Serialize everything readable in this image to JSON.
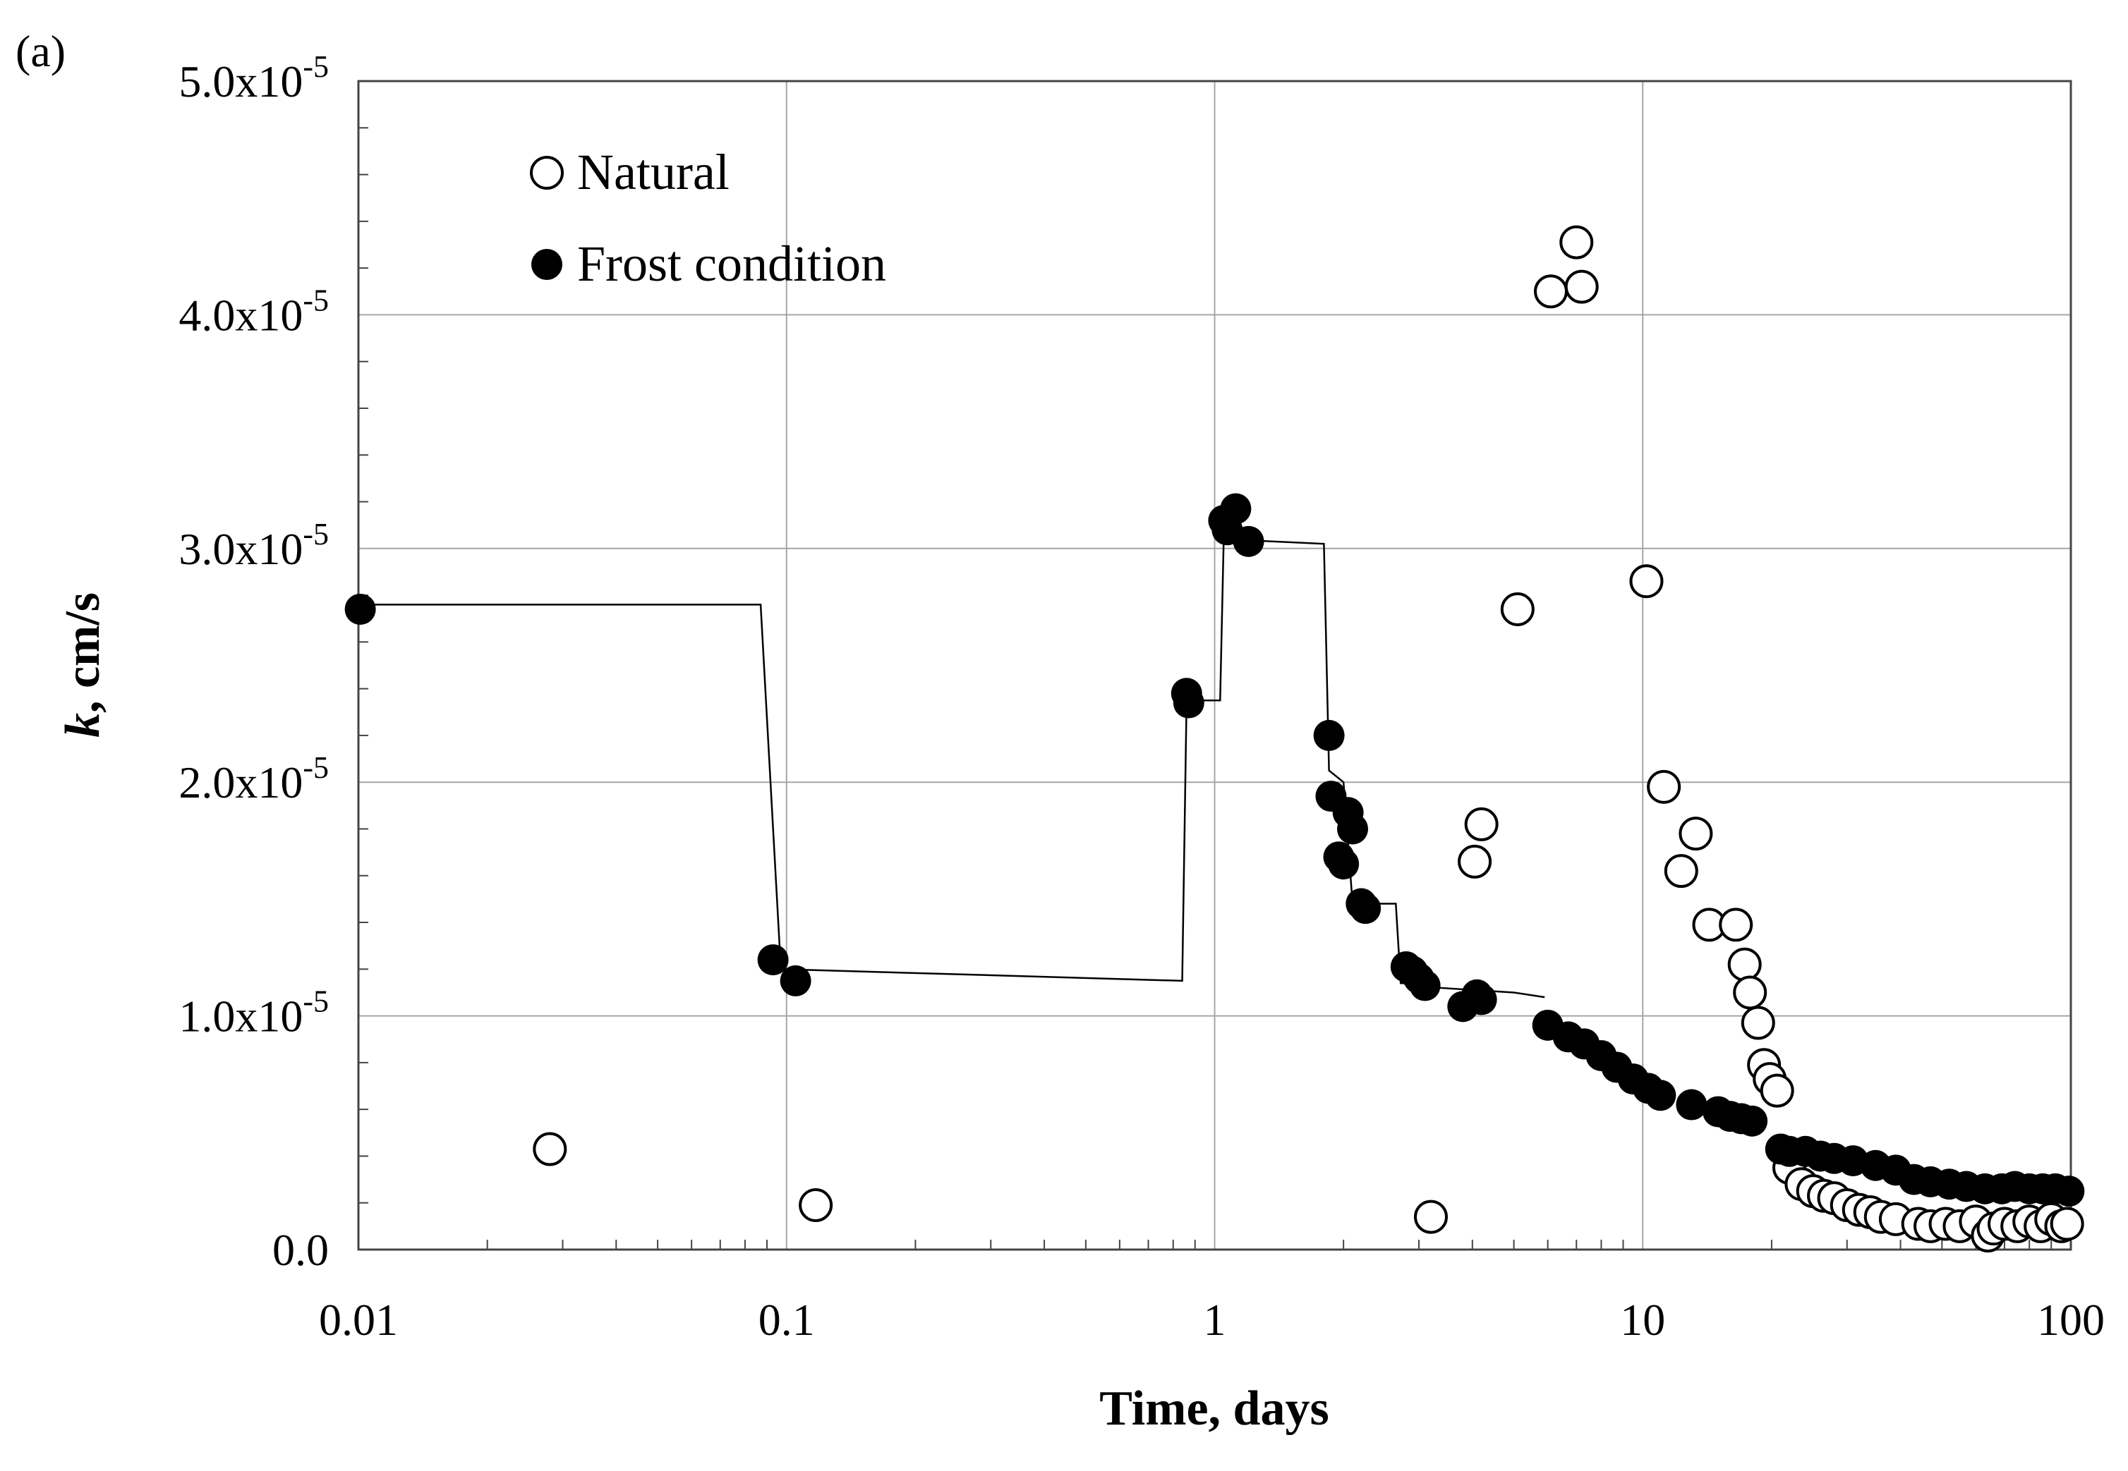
{
  "chart_data": {
    "type": "scatter",
    "panel_label": "(a)",
    "title": "",
    "xlabel": "Time, days",
    "ylabel_italic": "k",
    "ylabel_rest": ", cm/s",
    "xscale": "log",
    "xlim": [
      0.01,
      100
    ],
    "ylim": [
      0,
      5e-05
    ],
    "grid": true,
    "legend_position": "top-left",
    "x_ticks": [
      {
        "value": 0.01,
        "label": "0.01"
      },
      {
        "value": 0.1,
        "label": "0.1"
      },
      {
        "value": 1,
        "label": "1"
      },
      {
        "value": 10,
        "label": "10"
      },
      {
        "value": 100,
        "label": "100"
      }
    ],
    "y_ticks": [
      {
        "value": 0,
        "mant": "0.0",
        "exp": ""
      },
      {
        "value": 1e-05,
        "mant": "1.0x10",
        "exp": "-5"
      },
      {
        "value": 2e-05,
        "mant": "2.0x10",
        "exp": "-5"
      },
      {
        "value": 3e-05,
        "mant": "3.0x10",
        "exp": "-5"
      },
      {
        "value": 4e-05,
        "mant": "4.0x10",
        "exp": "-5"
      },
      {
        "value": 5e-05,
        "mant": "5.0x10",
        "exp": "-5"
      }
    ],
    "series": [
      {
        "name": "Natural",
        "marker": "open-circle",
        "color": "#000000",
        "points": [
          [
            0.028,
            4.3e-06
          ],
          [
            0.117,
            1.9e-06
          ],
          [
            3.2,
            1.4e-06
          ],
          [
            4.05,
            1.66e-05
          ],
          [
            4.2,
            1.82e-05
          ],
          [
            5.1,
            2.74e-05
          ],
          [
            6.1,
            4.1e-05
          ],
          [
            7.0,
            4.31e-05
          ],
          [
            7.2,
            4.12e-05
          ],
          [
            10.2,
            2.86e-05
          ],
          [
            11.2,
            1.98e-05
          ],
          [
            12.3,
            1.62e-05
          ],
          [
            13.3,
            1.78e-05
          ],
          [
            14.3,
            1.39e-05
          ],
          [
            16.5,
            1.39e-05
          ],
          [
            17.3,
            1.22e-05
          ],
          [
            17.8,
            1.1e-05
          ],
          [
            18.6,
            9.7e-06
          ],
          [
            19.2,
            7.9e-06
          ],
          [
            19.8,
            7.3e-06
          ],
          [
            20.6,
            6.8e-06
          ],
          [
            22.0,
            3.5e-06
          ],
          [
            23.5,
            2.8e-06
          ],
          [
            25.0,
            2.5e-06
          ],
          [
            26.5,
            2.3e-06
          ],
          [
            28.0,
            2.2e-06
          ],
          [
            30.0,
            1.9e-06
          ],
          [
            32.0,
            1.7e-06
          ],
          [
            34.0,
            1.6e-06
          ],
          [
            36.0,
            1.4e-06
          ],
          [
            39.0,
            1.3e-06
          ],
          [
            44.0,
            1.1e-06
          ],
          [
            47.0,
            1e-06
          ],
          [
            51.0,
            1.1e-06
          ],
          [
            55.0,
            1e-06
          ],
          [
            60.0,
            1.2e-06
          ],
          [
            64.0,
            6e-07
          ],
          [
            66.0,
            9e-07
          ],
          [
            70.0,
            1.1e-06
          ],
          [
            75.0,
            1e-06
          ],
          [
            80.0,
            1.2e-06
          ],
          [
            85.0,
            1e-06
          ],
          [
            90.0,
            1.3e-06
          ],
          [
            95.0,
            1e-06
          ],
          [
            98.0,
            1.1e-06
          ]
        ]
      },
      {
        "name": "Frost condition",
        "marker": "filled-circle",
        "color": "#000000",
        "points": [
          [
            0.0101,
            2.74e-05
          ],
          [
            0.093,
            1.24e-05
          ],
          [
            0.105,
            1.15e-05
          ],
          [
            0.86,
            2.38e-05
          ],
          [
            0.87,
            2.34e-05
          ],
          [
            1.05,
            3.12e-05
          ],
          [
            1.07,
            3.08e-05
          ],
          [
            1.12,
            3.17e-05
          ],
          [
            1.2,
            3.03e-05
          ],
          [
            1.85,
            2.2e-05
          ],
          [
            1.87,
            1.94e-05
          ],
          [
            1.95,
            1.68e-05
          ],
          [
            2.0,
            1.65e-05
          ],
          [
            2.05,
            1.87e-05
          ],
          [
            2.1,
            1.8e-05
          ],
          [
            2.2,
            1.48e-05
          ],
          [
            2.25,
            1.46e-05
          ],
          [
            2.8,
            1.21e-05
          ],
          [
            2.9,
            1.19e-05
          ],
          [
            3.0,
            1.16e-05
          ],
          [
            3.1,
            1.13e-05
          ],
          [
            3.8,
            1.04e-05
          ],
          [
            4.1,
            1.09e-05
          ],
          [
            4.2,
            1.07e-05
          ],
          [
            6.0,
            9.6e-06
          ],
          [
            6.7,
            9.1e-06
          ],
          [
            7.3,
            8.8e-06
          ],
          [
            8.0,
            8.3e-06
          ],
          [
            8.7,
            7.8e-06
          ],
          [
            9.5,
            7.3e-06
          ],
          [
            10.3,
            6.9e-06
          ],
          [
            11.0,
            6.6e-06
          ],
          [
            13.0,
            6.2e-06
          ],
          [
            15.0,
            5.9e-06
          ],
          [
            16.0,
            5.7e-06
          ],
          [
            17.0,
            5.6e-06
          ],
          [
            18.0,
            5.5e-06
          ],
          [
            21.0,
            4.3e-06
          ],
          [
            22.0,
            4.2e-06
          ],
          [
            24.0,
            4.2e-06
          ],
          [
            26.0,
            4e-06
          ],
          [
            28.0,
            3.9e-06
          ],
          [
            31.0,
            3.8e-06
          ],
          [
            35.0,
            3.6e-06
          ],
          [
            39.0,
            3.4e-06
          ],
          [
            43.0,
            3e-06
          ],
          [
            47.0,
            2.9e-06
          ],
          [
            52.0,
            2.8e-06
          ],
          [
            57.0,
            2.7e-06
          ],
          [
            63.0,
            2.6e-06
          ],
          [
            69.0,
            2.6e-06
          ],
          [
            74.0,
            2.7e-06
          ],
          [
            80.0,
            2.6e-06
          ],
          [
            86.0,
            2.6e-06
          ],
          [
            92.0,
            2.6e-06
          ],
          [
            99.0,
            2.5e-06
          ]
        ]
      },
      {
        "name": "Frost condition trend",
        "marker": "line",
        "color": "#000000",
        "points": [
          [
            0.01,
            2.76e-05
          ],
          [
            0.087,
            2.76e-05
          ],
          [
            0.097,
            1.2e-05
          ],
          [
            0.84,
            1.15e-05
          ],
          [
            0.86,
            2.35e-05
          ],
          [
            1.03,
            2.35e-05
          ],
          [
            1.05,
            3.04e-05
          ],
          [
            1.8,
            3.02e-05
          ],
          [
            1.85,
            2.05e-05
          ],
          [
            2.0,
            2e-05
          ],
          [
            2.1,
            1.48e-05
          ],
          [
            2.65,
            1.48e-05
          ],
          [
            2.72,
            1.14e-05
          ],
          [
            3.25,
            1.14e-05
          ],
          [
            3.35,
            1.12e-05
          ],
          [
            5.0,
            1.1e-05
          ],
          [
            5.9,
            1.08e-05
          ]
        ]
      }
    ]
  }
}
